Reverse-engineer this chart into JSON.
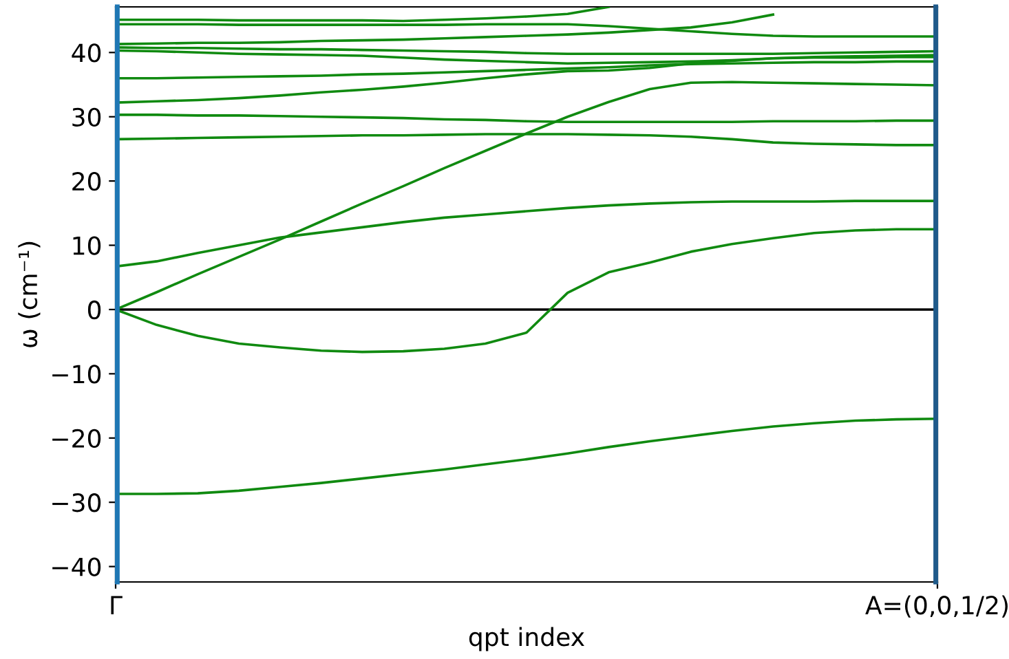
{
  "chart_data": {
    "type": "line",
    "xlabel": "qpt index",
    "ylabel": "ω (cm⁻¹)",
    "ylim": [
      -42.4,
      47.1
    ],
    "categories": [
      "Γ",
      null,
      null,
      null,
      null,
      null,
      null,
      null,
      null,
      null,
      null,
      null,
      null,
      null,
      null,
      null,
      null,
      null,
      null,
      null,
      "A=(0,0,1/2)"
    ],
    "yticks": [
      -40,
      -30,
      -20,
      -10,
      0,
      10,
      20,
      30,
      40
    ],
    "grid": false,
    "legend": false,
    "line_style": "solid",
    "marker": "none",
    "ref_lines": [
      {
        "axis": "y",
        "value": 0,
        "color": "#000000"
      },
      {
        "axis": "x",
        "value": "Γ",
        "color": "#1f77b4"
      },
      {
        "axis": "x",
        "value": "A=(0,0,1/2)",
        "color": "#1f5a8a"
      }
    ],
    "series": [
      {
        "color": "#108a10",
        "values": [
          -28.7,
          -28.7,
          -28.6,
          -28.2,
          -27.6,
          -27.0,
          -26.3,
          -25.6,
          -24.9,
          -24.1,
          -23.3,
          -22.4,
          -21.4,
          -20.5,
          -19.7,
          -18.9,
          -18.2,
          -17.7,
          -17.3,
          -17.1,
          -17.0
        ]
      },
      {
        "color": "#108a10",
        "values": [
          0,
          -2.4,
          -4.1,
          -5.3,
          -5.9,
          -6.4,
          -6.6,
          -6.5,
          -6.1,
          -5.3,
          -3.6,
          2.6,
          5.8,
          7.3,
          9.0,
          10.2,
          11.1,
          11.9,
          12.3,
          12.5,
          12.5
        ]
      },
      {
        "color": "#108a10",
        "values": [
          0,
          2.7,
          5.5,
          8.2,
          10.9,
          13.7,
          16.5,
          19.2,
          22.0,
          24.7,
          27.4,
          30.0,
          32.3,
          34.3,
          35.3,
          35.4,
          35.3,
          35.2,
          35.1,
          35.0,
          34.9
        ]
      },
      {
        "color": "#108a10",
        "values": [
          6.7,
          7.5,
          8.8,
          10.0,
          11.2,
          12.0,
          12.8,
          13.6,
          14.3,
          14.8,
          15.3,
          15.8,
          16.2,
          16.5,
          16.7,
          16.8,
          16.8,
          16.8,
          16.9,
          16.9,
          16.9
        ]
      },
      {
        "color": "#108a10",
        "values": [
          26.5,
          26.6,
          26.7,
          26.8,
          26.9,
          27.0,
          27.1,
          27.1,
          27.2,
          27.3,
          27.3,
          27.3,
          27.2,
          27.1,
          26.9,
          26.5,
          26.0,
          25.8,
          25.7,
          25.6,
          25.6
        ]
      },
      {
        "color": "#108a10",
        "values": [
          30.3,
          30.3,
          30.2,
          30.2,
          30.1,
          30.0,
          29.9,
          29.8,
          29.6,
          29.5,
          29.3,
          29.2,
          29.2,
          29.2,
          29.2,
          29.2,
          29.3,
          29.3,
          29.3,
          29.4,
          29.4
        ]
      },
      {
        "color": "#108a10",
        "values": [
          32.2,
          32.4,
          32.6,
          32.9,
          33.3,
          33.8,
          34.2,
          34.7,
          35.3,
          36.0,
          36.6,
          37.1,
          37.2,
          37.6,
          38.3,
          38.7,
          39.1,
          39.2,
          39.2,
          39.3,
          39.3
        ]
      },
      {
        "color": "#108a10",
        "values": [
          36.0,
          36.0,
          36.1,
          36.2,
          36.3,
          36.4,
          36.6,
          36.7,
          36.9,
          37.1,
          37.3,
          37.5,
          37.7,
          38.0,
          38.2,
          38.3,
          38.4,
          38.5,
          38.5,
          38.6,
          38.6
        ]
      },
      {
        "color": "#108a10",
        "values": [
          40.3,
          40.2,
          40.0,
          39.8,
          39.7,
          39.6,
          39.5,
          39.2,
          38.9,
          38.7,
          38.5,
          38.3,
          38.4,
          38.5,
          38.6,
          38.8,
          39.1,
          39.3,
          39.4,
          39.5,
          39.6
        ]
      },
      {
        "color": "#108a10",
        "values": [
          40.8,
          40.7,
          40.7,
          40.6,
          40.5,
          40.5,
          40.4,
          40.3,
          40.2,
          40.1,
          39.9,
          39.8,
          39.8,
          39.8,
          39.8,
          39.8,
          39.8,
          39.9,
          40.0,
          40.1,
          40.2
        ]
      },
      {
        "color": "#108a10",
        "values": [
          41.3,
          41.4,
          41.5,
          41.5,
          41.6,
          41.8,
          41.9,
          42.0,
          42.2,
          42.4,
          42.6,
          42.8,
          43.1,
          43.5,
          43.9,
          44.7,
          45.9,
          null,
          null,
          null,
          null
        ]
      },
      {
        "color": "#108a10",
        "values": [
          44.4,
          44.4,
          44.4,
          44.3,
          44.3,
          44.3,
          44.3,
          44.3,
          44.3,
          44.4,
          44.4,
          44.4,
          44.1,
          43.7,
          43.3,
          42.9,
          42.6,
          42.5,
          42.5,
          42.5,
          42.5
        ]
      },
      {
        "color": "#108a10",
        "values": [
          45.1,
          45.1,
          45.1,
          45.0,
          45.0,
          45.0,
          45.0,
          44.9,
          45.1,
          45.3,
          45.6,
          46.0,
          47.1,
          null,
          null,
          null,
          null,
          null,
          null,
          null,
          null
        ]
      }
    ]
  }
}
